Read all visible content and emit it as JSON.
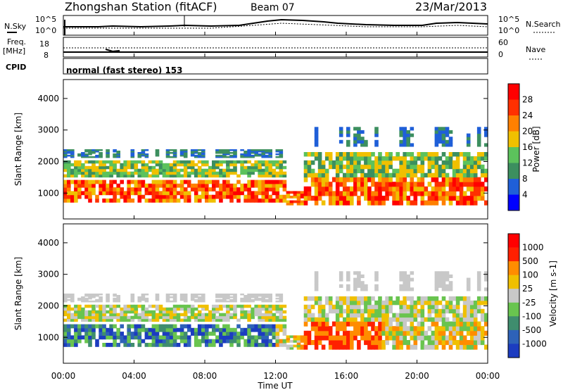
{
  "header": {
    "title": "Zhongshan Station (fitACF)",
    "beam": "Beam 07",
    "date": "23/Mar/2013"
  },
  "status_panels": {
    "nsky_label": "N.Sky",
    "nsky_ticks": [
      "10^5",
      "10^0"
    ],
    "nsearch_label": "N.Search",
    "nsearch_ticks": [
      "10^5",
      "10^0"
    ],
    "freq_label": "Freq.",
    "freq_unit": "[MHz]",
    "freq_ticks": [
      "18",
      "8"
    ],
    "nave_label": "Nave",
    "nave_ticks": [
      "60",
      "0"
    ],
    "cpid_label": "CPID",
    "cpid_text": "normal (fast stereo) 153"
  },
  "chart_data": [
    {
      "type": "heatmap",
      "name": "power",
      "ylabel": "Slant Range [km]",
      "ylim": [
        180,
        4600
      ],
      "yticks": [
        "1000",
        "2000",
        "3000",
        "4000"
      ],
      "colorbar_label": "Power [dB]",
      "colorbar_ticks": [
        "4",
        "8",
        "12",
        "16",
        "20",
        "24",
        "28"
      ],
      "colors": [
        "#0000ff",
        "#1f5fd8",
        "#3c8f5f",
        "#5cc25c",
        "#f0c000",
        "#ff8000",
        "#ff3000",
        "#ff0000"
      ]
    },
    {
      "type": "heatmap",
      "name": "velocity",
      "ylabel": "Slant Range [km]",
      "ylim": [
        180,
        4600
      ],
      "yticks": [
        "1000",
        "2000",
        "3000",
        "4000"
      ],
      "colorbar_label": "Velocity [m s-1]",
      "colorbar_ticks": [
        "1000",
        "500",
        "100",
        "25",
        "-25",
        "-100",
        "-500",
        "-1000"
      ],
      "colors": [
        "#1c3cc0",
        "#2e62b8",
        "#3f8d6e",
        "#69c44f",
        "#c8c8c8",
        "#f0c000",
        "#ff8c00",
        "#ff2000",
        "#ff0000"
      ]
    }
  ],
  "xaxis": {
    "label": "Time UT",
    "ticks": [
      "00:00",
      "04:00",
      "08:00",
      "12:00",
      "16:00",
      "20:00",
      "00:00"
    ]
  }
}
